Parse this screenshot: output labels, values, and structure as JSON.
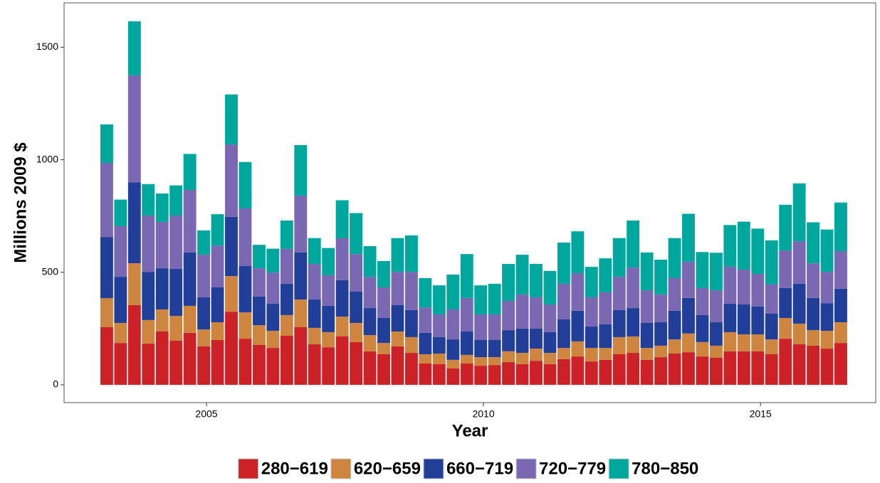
{
  "chart_data": {
    "type": "stacked-bar",
    "x_label": "Year",
    "y_label": "Millions 2009 $",
    "x": [
      2003.2,
      2003.45,
      2003.7,
      2003.95,
      2004.2,
      2004.45,
      2004.7,
      2004.95,
      2005.2,
      2005.45,
      2005.7,
      2005.95,
      2006.2,
      2006.45,
      2006.7,
      2006.95,
      2007.2,
      2007.45,
      2007.7,
      2007.95,
      2008.2,
      2008.45,
      2008.7,
      2008.95,
      2009.2,
      2009.45,
      2009.7,
      2009.95,
      2010.2,
      2010.45,
      2010.7,
      2010.95,
      2011.2,
      2011.45,
      2011.7,
      2011.95,
      2012.2,
      2012.45,
      2012.7,
      2012.95,
      2013.2,
      2013.45,
      2013.7,
      2013.95,
      2014.2,
      2014.45,
      2014.7,
      2014.95,
      2015.2,
      2015.45,
      2015.7,
      2015.95,
      2016.2,
      2016.45
    ],
    "series": [
      {
        "name": "280−619",
        "color": "#cc2127",
        "values": [
          256,
          186,
          354,
          183,
          237,
          196,
          231,
          171,
          199,
          325,
          205,
          177,
          164,
          218,
          256,
          180,
          167,
          215,
          190,
          149,
          136,
          171,
          142,
          95,
          92,
          73,
          95,
          85,
          88,
          101,
          92,
          107,
          92,
          114,
          126,
          104,
          111,
          136,
          142,
          111,
          123,
          139,
          145,
          126,
          120,
          149,
          149,
          149,
          136,
          205,
          180,
          174,
          161,
          186
        ]
      },
      {
        "name": "620−659",
        "color": "#cd853f",
        "values": [
          129,
          89,
          186,
          105,
          98,
          110,
          120,
          75,
          79,
          158,
          117,
          88,
          76,
          92,
          123,
          73,
          67,
          88,
          85,
          72,
          50,
          66,
          70,
          41,
          47,
          38,
          38,
          38,
          35,
          48,
          50,
          54,
          50,
          50,
          67,
          60,
          53,
          76,
          73,
          53,
          51,
          63,
          83,
          64,
          54,
          85,
          75,
          75,
          66,
          92,
          92,
          69,
          79,
          92
        ]
      },
      {
        "name": "660−719",
        "color": "#213f99",
        "values": [
          272,
          205,
          360,
          214,
          183,
          209,
          237,
          143,
          155,
          263,
          206,
          127,
          120,
          139,
          209,
          126,
          117,
          162,
          139,
          120,
          111,
          117,
          120,
          95,
          73,
          91,
          104,
          76,
          76,
          94,
          108,
          89,
          92,
          127,
          136,
          95,
          105,
          120,
          126,
          111,
          104,
          127,
          158,
          120,
          104,
          126,
          133,
          124,
          114,
          133,
          177,
          143,
          123,
          149
        ]
      },
      {
        "name": "720−779",
        "color": "#7b68b3",
        "values": [
          329,
          225,
          475,
          250,
          206,
          237,
          278,
          189,
          186,
          322,
          256,
          126,
          139,
          155,
          253,
          158,
          136,
          186,
          167,
          139,
          136,
          148,
          170,
          113,
          101,
          133,
          149,
          114,
          114,
          130,
          151,
          139,
          123,
          158,
          167,
          130,
          142,
          148,
          180,
          145,
          123,
          145,
          161,
          120,
          142,
          165,
          155,
          145,
          130,
          167,
          189,
          154,
          139,
          167
        ]
      },
      {
        "name": "780−850",
        "color": "#00a79d",
        "values": [
          171,
          118,
          240,
          140,
          126,
          134,
          160,
          108,
          139,
          222,
          206,
          104,
          106,
          126,
          224,
          115,
          121,
          169,
          182,
          136,
          117,
          150,
          162,
          130,
          129,
          155,
          195,
          129,
          136,
          164,
          177,
          148,
          149,
          183,
          186,
          135,
          151,
          172,
          209,
          168,
          155,
          178,
          213,
          160,
          167,
          185,
          213,
          201,
          196,
          203,
          257,
          182,
          188,
          216
        ]
      }
    ],
    "xlim": [
      2002.43,
      2017.08
    ],
    "xticks": [
      2005,
      2010,
      2015
    ],
    "ylim": [
      -79,
      1697
    ],
    "yticks": [
      0,
      500,
      1000,
      1500
    ],
    "bar_width": 0.23,
    "grid": false,
    "legend": "bottom"
  }
}
